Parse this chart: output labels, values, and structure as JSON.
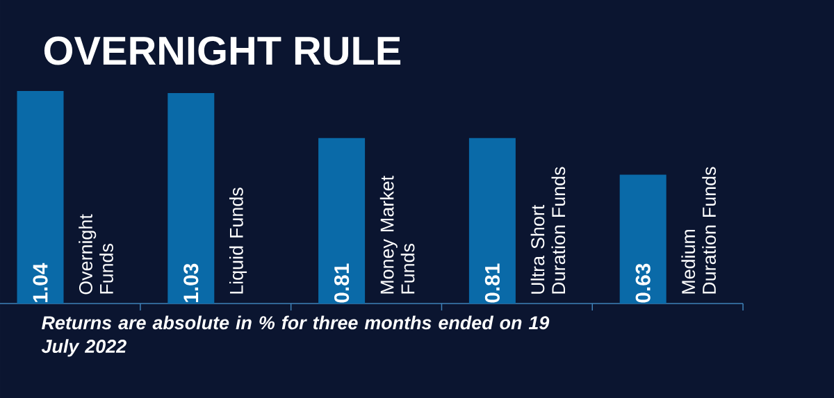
{
  "chart_data": {
    "type": "bar",
    "title": "OVERNIGHT RULE",
    "categories": [
      "Overnight Funds",
      "Liquid Funds",
      "Money Market Funds",
      "Ultra Short Duration Funds",
      "Medium Duration Funds"
    ],
    "values": [
      1.04,
      1.03,
      0.81,
      0.81,
      0.63
    ],
    "value_labels": [
      "1.04",
      "1.03",
      "0.81",
      "0.81",
      "0.63"
    ],
    "color": "#0a6aa8",
    "annotations": [
      "Returns are absolute in % for three months ended on 19 July 2022"
    ]
  }
}
